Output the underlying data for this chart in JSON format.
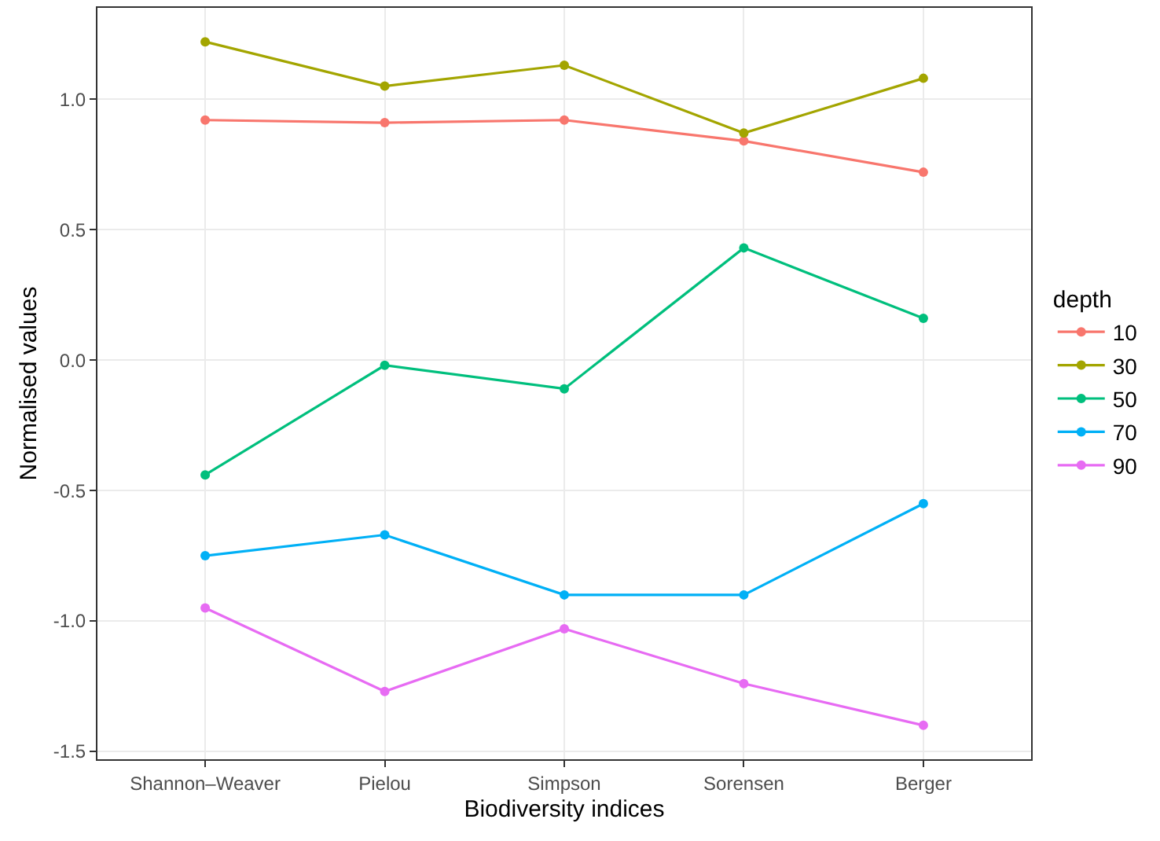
{
  "chart_data": {
    "type": "line",
    "xlabel": "Biodiversity indices",
    "ylabel": "Normalised values",
    "legend_title": "depth",
    "categories": [
      "Shannon–Weaver",
      "Pielou",
      "Simpson",
      "Sorensen",
      "Berger"
    ],
    "series": [
      {
        "name": "10",
        "color": "#f8766d",
        "values": [
          0.92,
          0.91,
          0.92,
          0.84,
          0.72
        ]
      },
      {
        "name": "30",
        "color": "#a3a500",
        "values": [
          1.22,
          1.05,
          1.13,
          0.87,
          1.08
        ]
      },
      {
        "name": "50",
        "color": "#00bf7d",
        "values": [
          -0.44,
          -0.02,
          -0.11,
          0.43,
          0.16
        ]
      },
      {
        "name": "70",
        "color": "#00b0f6",
        "values": [
          -0.75,
          -0.67,
          -0.9,
          -0.9,
          -0.55
        ]
      },
      {
        "name": "90",
        "color": "#e76bf3",
        "values": [
          -0.95,
          -1.27,
          -1.03,
          -1.24,
          -1.4
        ]
      }
    ],
    "ylim": [
      -1.53,
      1.35
    ],
    "yticks": [
      {
        "value": -1.5,
        "label": "-1.5"
      },
      {
        "value": -1,
        "label": "-1.0"
      },
      {
        "value": -0.5,
        "label": "-0.5"
      },
      {
        "value": 0,
        "label": "0.0"
      },
      {
        "value": 0.5,
        "label": "0.5"
      },
      {
        "value": 1,
        "label": "1.0"
      }
    ],
    "grid": true,
    "legend": "right",
    "marker": "circle",
    "line_style": "solid"
  }
}
